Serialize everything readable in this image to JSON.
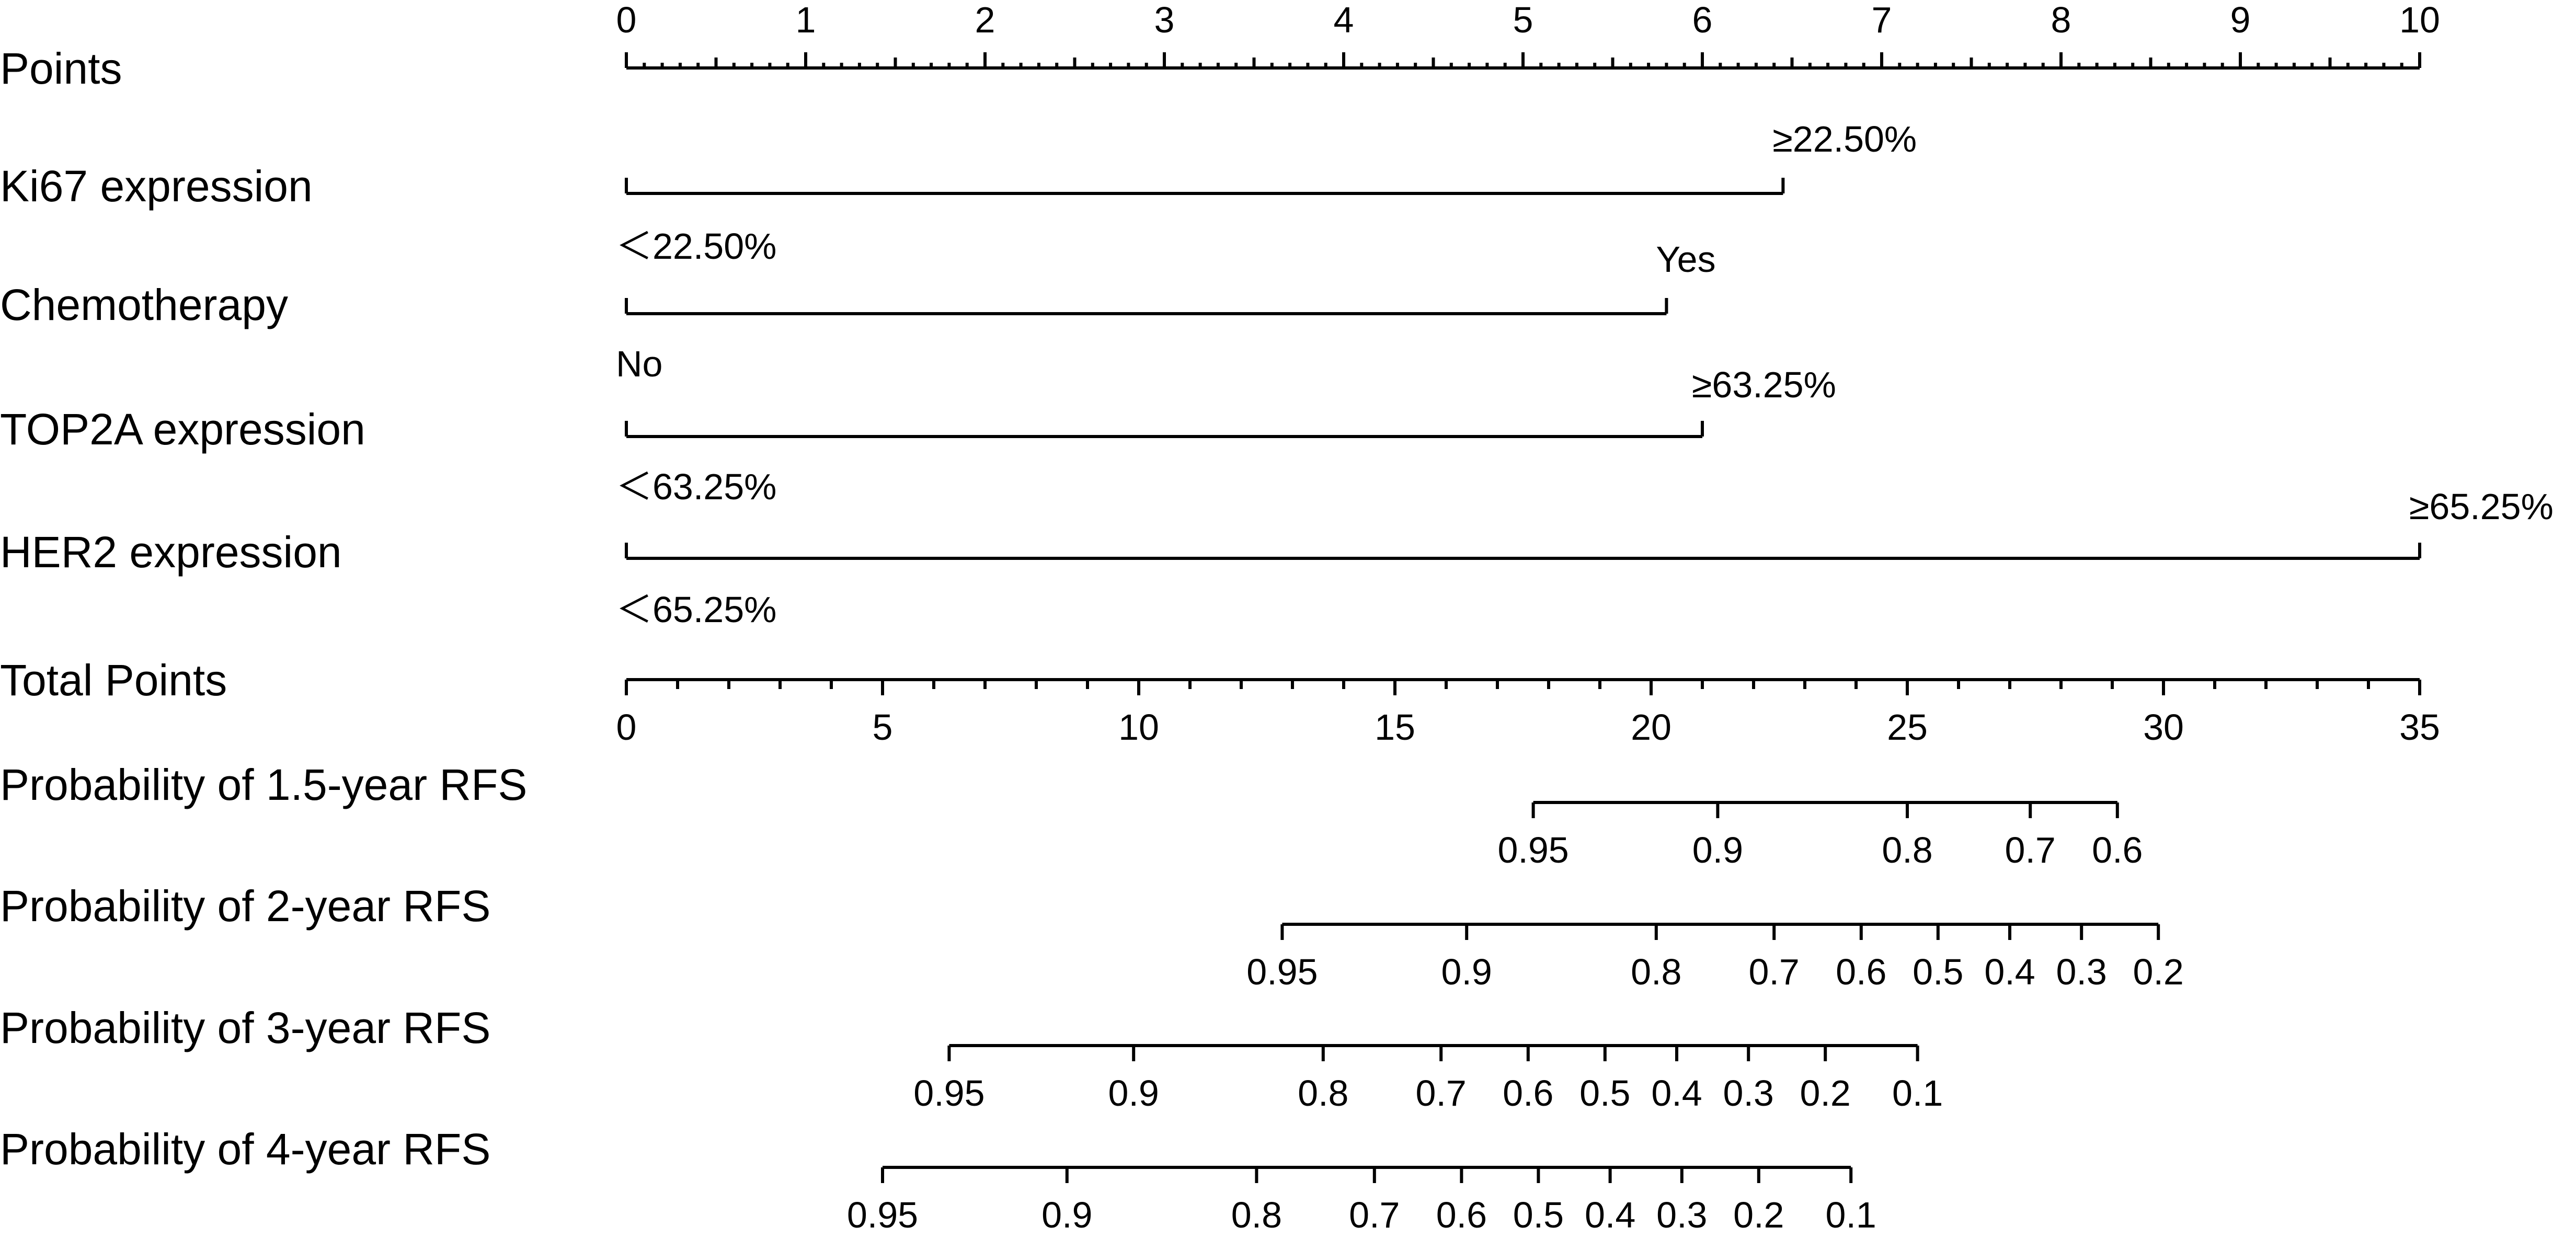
{
  "chart_data": {
    "type": "nomogram",
    "points_axis": {
      "label": "Points",
      "range": [
        0,
        10
      ],
      "ticks": [
        "0",
        "1",
        "2",
        "3",
        "4",
        "5",
        "6",
        "7",
        "8",
        "9",
        "10"
      ]
    },
    "variables": [
      {
        "label": "Ki67 expression",
        "levels": [
          {
            "text": "＜22.50%",
            "points": 0
          },
          {
            "text": "≥22.50%",
            "points": 6.45
          }
        ]
      },
      {
        "label": "Chemotherapy",
        "levels": [
          {
            "text": "No",
            "points": 0
          },
          {
            "text": "Yes",
            "points": 5.8
          }
        ]
      },
      {
        "label": "TOP2A expression",
        "levels": [
          {
            "text": "＜63.25%",
            "points": 0
          },
          {
            "text": "≥63.25%",
            "points": 6.0
          }
        ]
      },
      {
        "label": "HER2 expression",
        "levels": [
          {
            "text": "＜65.25%",
            "points": 0
          },
          {
            "text": "≥65.25%",
            "points": 10
          }
        ]
      }
    ],
    "total_points_axis": {
      "label": "Total Points",
      "range": [
        0,
        35
      ],
      "ticks": [
        "0",
        "5",
        "10",
        "15",
        "20",
        "25",
        "30",
        "35"
      ]
    },
    "probability_axes": [
      {
        "label": "Probability of 1.5-year RFS",
        "ticks": [
          {
            "text": "0.95",
            "total_points": 17.7
          },
          {
            "text": "0.9",
            "total_points": 21.3
          },
          {
            "text": "0.8",
            "total_points": 25.0
          },
          {
            "text": "0.7",
            "total_points": 27.4
          },
          {
            "text": "0.6",
            "total_points": 29.1
          }
        ]
      },
      {
        "label": "Probability of 2-year RFS",
        "ticks": [
          {
            "text": "0.95",
            "total_points": 12.8
          },
          {
            "text": "0.9",
            "total_points": 16.4
          },
          {
            "text": "0.8",
            "total_points": 20.1
          },
          {
            "text": "0.7",
            "total_points": 22.4
          },
          {
            "text": "0.6",
            "total_points": 24.1
          },
          {
            "text": "0.5",
            "total_points": 25.6
          },
          {
            "text": "0.4",
            "total_points": 27.0
          },
          {
            "text": "0.3",
            "total_points": 28.4
          },
          {
            "text": "0.2",
            "total_points": 29.9
          }
        ]
      },
      {
        "label": "Probability of 3-year RFS",
        "ticks": [
          {
            "text": "0.95",
            "total_points": 6.3
          },
          {
            "text": "0.9",
            "total_points": 9.9
          },
          {
            "text": "0.8",
            "total_points": 13.6
          },
          {
            "text": "0.7",
            "total_points": 15.9
          },
          {
            "text": "0.6",
            "total_points": 17.6
          },
          {
            "text": "0.5",
            "total_points": 19.1
          },
          {
            "text": "0.4",
            "total_points": 20.5
          },
          {
            "text": "0.3",
            "total_points": 21.9
          },
          {
            "text": "0.2",
            "total_points": 23.4
          },
          {
            "text": "0.1",
            "total_points": 25.2
          }
        ]
      },
      {
        "label": "Probability of 4-year RFS",
        "ticks": [
          {
            "text": "0.95",
            "total_points": 5.0
          },
          {
            "text": "0.9",
            "total_points": 8.6
          },
          {
            "text": "0.8",
            "total_points": 12.3
          },
          {
            "text": "0.7",
            "total_points": 14.6
          },
          {
            "text": "0.6",
            "total_points": 16.3
          },
          {
            "text": "0.5",
            "total_points": 17.8
          },
          {
            "text": "0.4",
            "total_points": 19.2
          },
          {
            "text": "0.3",
            "total_points": 20.6
          },
          {
            "text": "0.2",
            "total_points": 22.1
          },
          {
            "text": "0.1",
            "total_points": 23.9
          }
        ]
      }
    ]
  }
}
